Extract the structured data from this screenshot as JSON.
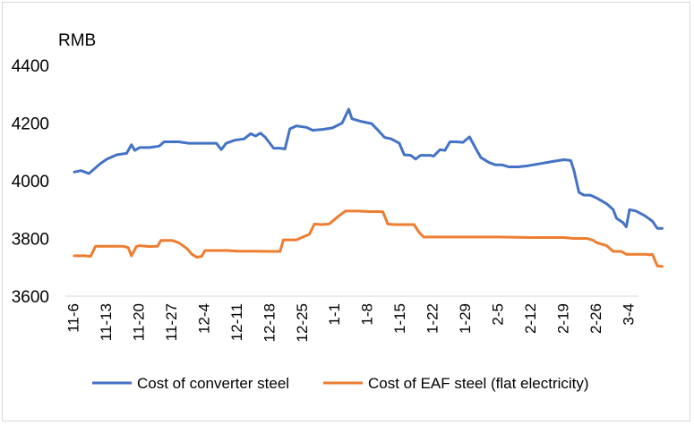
{
  "chart_data": {
    "type": "line",
    "ylabel": "RMB",
    "ylim": [
      3600,
      4400
    ],
    "yticks": [
      3600,
      3800,
      4000,
      4200,
      4400
    ],
    "x_tick_labels": [
      "11-6",
      "11-13",
      "11-20",
      "11-27",
      "12-4",
      "12-11",
      "12-18",
      "12-25",
      "1-1",
      "1-8",
      "1-15",
      "1-22",
      "1-29",
      "2-5",
      "2-12",
      "2-19",
      "2-26",
      "3-4"
    ],
    "grid": false,
    "legend_position": "bottom",
    "series": [
      {
        "name": "Cost of converter steel",
        "color": "#4472C4",
        "points": [
          [
            0,
            4030
          ],
          [
            0.2,
            4035
          ],
          [
            0.45,
            4025
          ],
          [
            0.6,
            4040
          ],
          [
            0.8,
            4060
          ],
          [
            1.0,
            4075
          ],
          [
            1.3,
            4090
          ],
          [
            1.6,
            4095
          ],
          [
            1.75,
            4125
          ],
          [
            1.85,
            4105
          ],
          [
            2.0,
            4115
          ],
          [
            2.3,
            4115
          ],
          [
            2.6,
            4120
          ],
          [
            2.75,
            4135
          ],
          [
            3.2,
            4135
          ],
          [
            3.5,
            4130
          ],
          [
            4.0,
            4130
          ],
          [
            4.35,
            4130
          ],
          [
            4.5,
            4108
          ],
          [
            4.65,
            4130
          ],
          [
            4.9,
            4140
          ],
          [
            5.2,
            4145
          ],
          [
            5.4,
            4163
          ],
          [
            5.55,
            4155
          ],
          [
            5.7,
            4165
          ],
          [
            5.85,
            4150
          ],
          [
            6.1,
            4113
          ],
          [
            6.3,
            4113
          ],
          [
            6.45,
            4110
          ],
          [
            6.6,
            4180
          ],
          [
            6.8,
            4190
          ],
          [
            7.1,
            4185
          ],
          [
            7.3,
            4175
          ],
          [
            7.6,
            4178
          ],
          [
            7.9,
            4183
          ],
          [
            8.2,
            4200
          ],
          [
            8.4,
            4248
          ],
          [
            8.5,
            4215
          ],
          [
            8.8,
            4205
          ],
          [
            9.1,
            4198
          ],
          [
            9.3,
            4175
          ],
          [
            9.5,
            4150
          ],
          [
            9.7,
            4145
          ],
          [
            9.95,
            4130
          ],
          [
            10.1,
            4090
          ],
          [
            10.3,
            4088
          ],
          [
            10.45,
            4075
          ],
          [
            10.6,
            4088
          ],
          [
            10.9,
            4088
          ],
          [
            11.0,
            4085
          ],
          [
            11.2,
            4108
          ],
          [
            11.35,
            4105
          ],
          [
            11.5,
            4135
          ],
          [
            11.7,
            4135
          ],
          [
            11.9,
            4133
          ],
          [
            12.1,
            4152
          ],
          [
            12.3,
            4110
          ],
          [
            12.45,
            4080
          ],
          [
            12.7,
            4063
          ],
          [
            12.9,
            4055
          ],
          [
            13.1,
            4055
          ],
          [
            13.3,
            4048
          ],
          [
            13.6,
            4048
          ],
          [
            13.9,
            4052
          ],
          [
            14.3,
            4060
          ],
          [
            14.7,
            4068
          ],
          [
            15.0,
            4073
          ],
          [
            15.2,
            4070
          ],
          [
            15.3,
            4035
          ],
          [
            15.45,
            3960
          ],
          [
            15.6,
            3950
          ],
          [
            15.8,
            3950
          ],
          [
            16.0,
            3940
          ],
          [
            16.3,
            3920
          ],
          [
            16.5,
            3900
          ],
          [
            16.6,
            3870
          ],
          [
            16.8,
            3855
          ],
          [
            16.9,
            3840
          ],
          [
            17.0,
            3900
          ],
          [
            17.2,
            3895
          ],
          [
            17.45,
            3880
          ],
          [
            17.7,
            3860
          ],
          [
            17.85,
            3835
          ],
          [
            18.0,
            3835
          ]
        ]
      },
      {
        "name": "Cost of EAF steel (flat electricity)",
        "color": "#ED7D31",
        "points": [
          [
            0,
            3740
          ],
          [
            0.3,
            3740
          ],
          [
            0.5,
            3738
          ],
          [
            0.65,
            3773
          ],
          [
            0.9,
            3773
          ],
          [
            1.2,
            3773
          ],
          [
            1.5,
            3773
          ],
          [
            1.65,
            3768
          ],
          [
            1.75,
            3740
          ],
          [
            1.9,
            3772
          ],
          [
            2.0,
            3775
          ],
          [
            2.3,
            3772
          ],
          [
            2.55,
            3773
          ],
          [
            2.65,
            3793
          ],
          [
            3.0,
            3793
          ],
          [
            3.2,
            3785
          ],
          [
            3.45,
            3765
          ],
          [
            3.6,
            3745
          ],
          [
            3.75,
            3735
          ],
          [
            3.9,
            3738
          ],
          [
            4.0,
            3758
          ],
          [
            4.3,
            3758
          ],
          [
            4.7,
            3758
          ],
          [
            5.0,
            3756
          ],
          [
            5.5,
            3756
          ],
          [
            6.0,
            3755
          ],
          [
            6.3,
            3755
          ],
          [
            6.4,
            3795
          ],
          [
            6.6,
            3795
          ],
          [
            6.8,
            3795
          ],
          [
            7.0,
            3805
          ],
          [
            7.2,
            3815
          ],
          [
            7.35,
            3850
          ],
          [
            7.55,
            3848
          ],
          [
            7.8,
            3850
          ],
          [
            8.1,
            3878
          ],
          [
            8.3,
            3895
          ],
          [
            8.7,
            3895
          ],
          [
            9.0,
            3893
          ],
          [
            9.3,
            3893
          ],
          [
            9.45,
            3892
          ],
          [
            9.6,
            3850
          ],
          [
            9.8,
            3848
          ],
          [
            10.2,
            3848
          ],
          [
            10.4,
            3848
          ],
          [
            10.55,
            3822
          ],
          [
            10.7,
            3805
          ],
          [
            11.0,
            3805
          ],
          [
            12.0,
            3805
          ],
          [
            13.0,
            3805
          ],
          [
            14.0,
            3803
          ],
          [
            15.0,
            3803
          ],
          [
            15.3,
            3800
          ],
          [
            15.7,
            3800
          ],
          [
            15.9,
            3793
          ],
          [
            16.0,
            3785
          ],
          [
            16.3,
            3775
          ],
          [
            16.5,
            3755
          ],
          [
            16.75,
            3755
          ],
          [
            16.9,
            3745
          ],
          [
            17.2,
            3745
          ],
          [
            17.5,
            3745
          ],
          [
            17.6,
            3743
          ],
          [
            17.7,
            3745
          ],
          [
            17.85,
            3705
          ],
          [
            18.0,
            3703
          ]
        ]
      }
    ]
  }
}
